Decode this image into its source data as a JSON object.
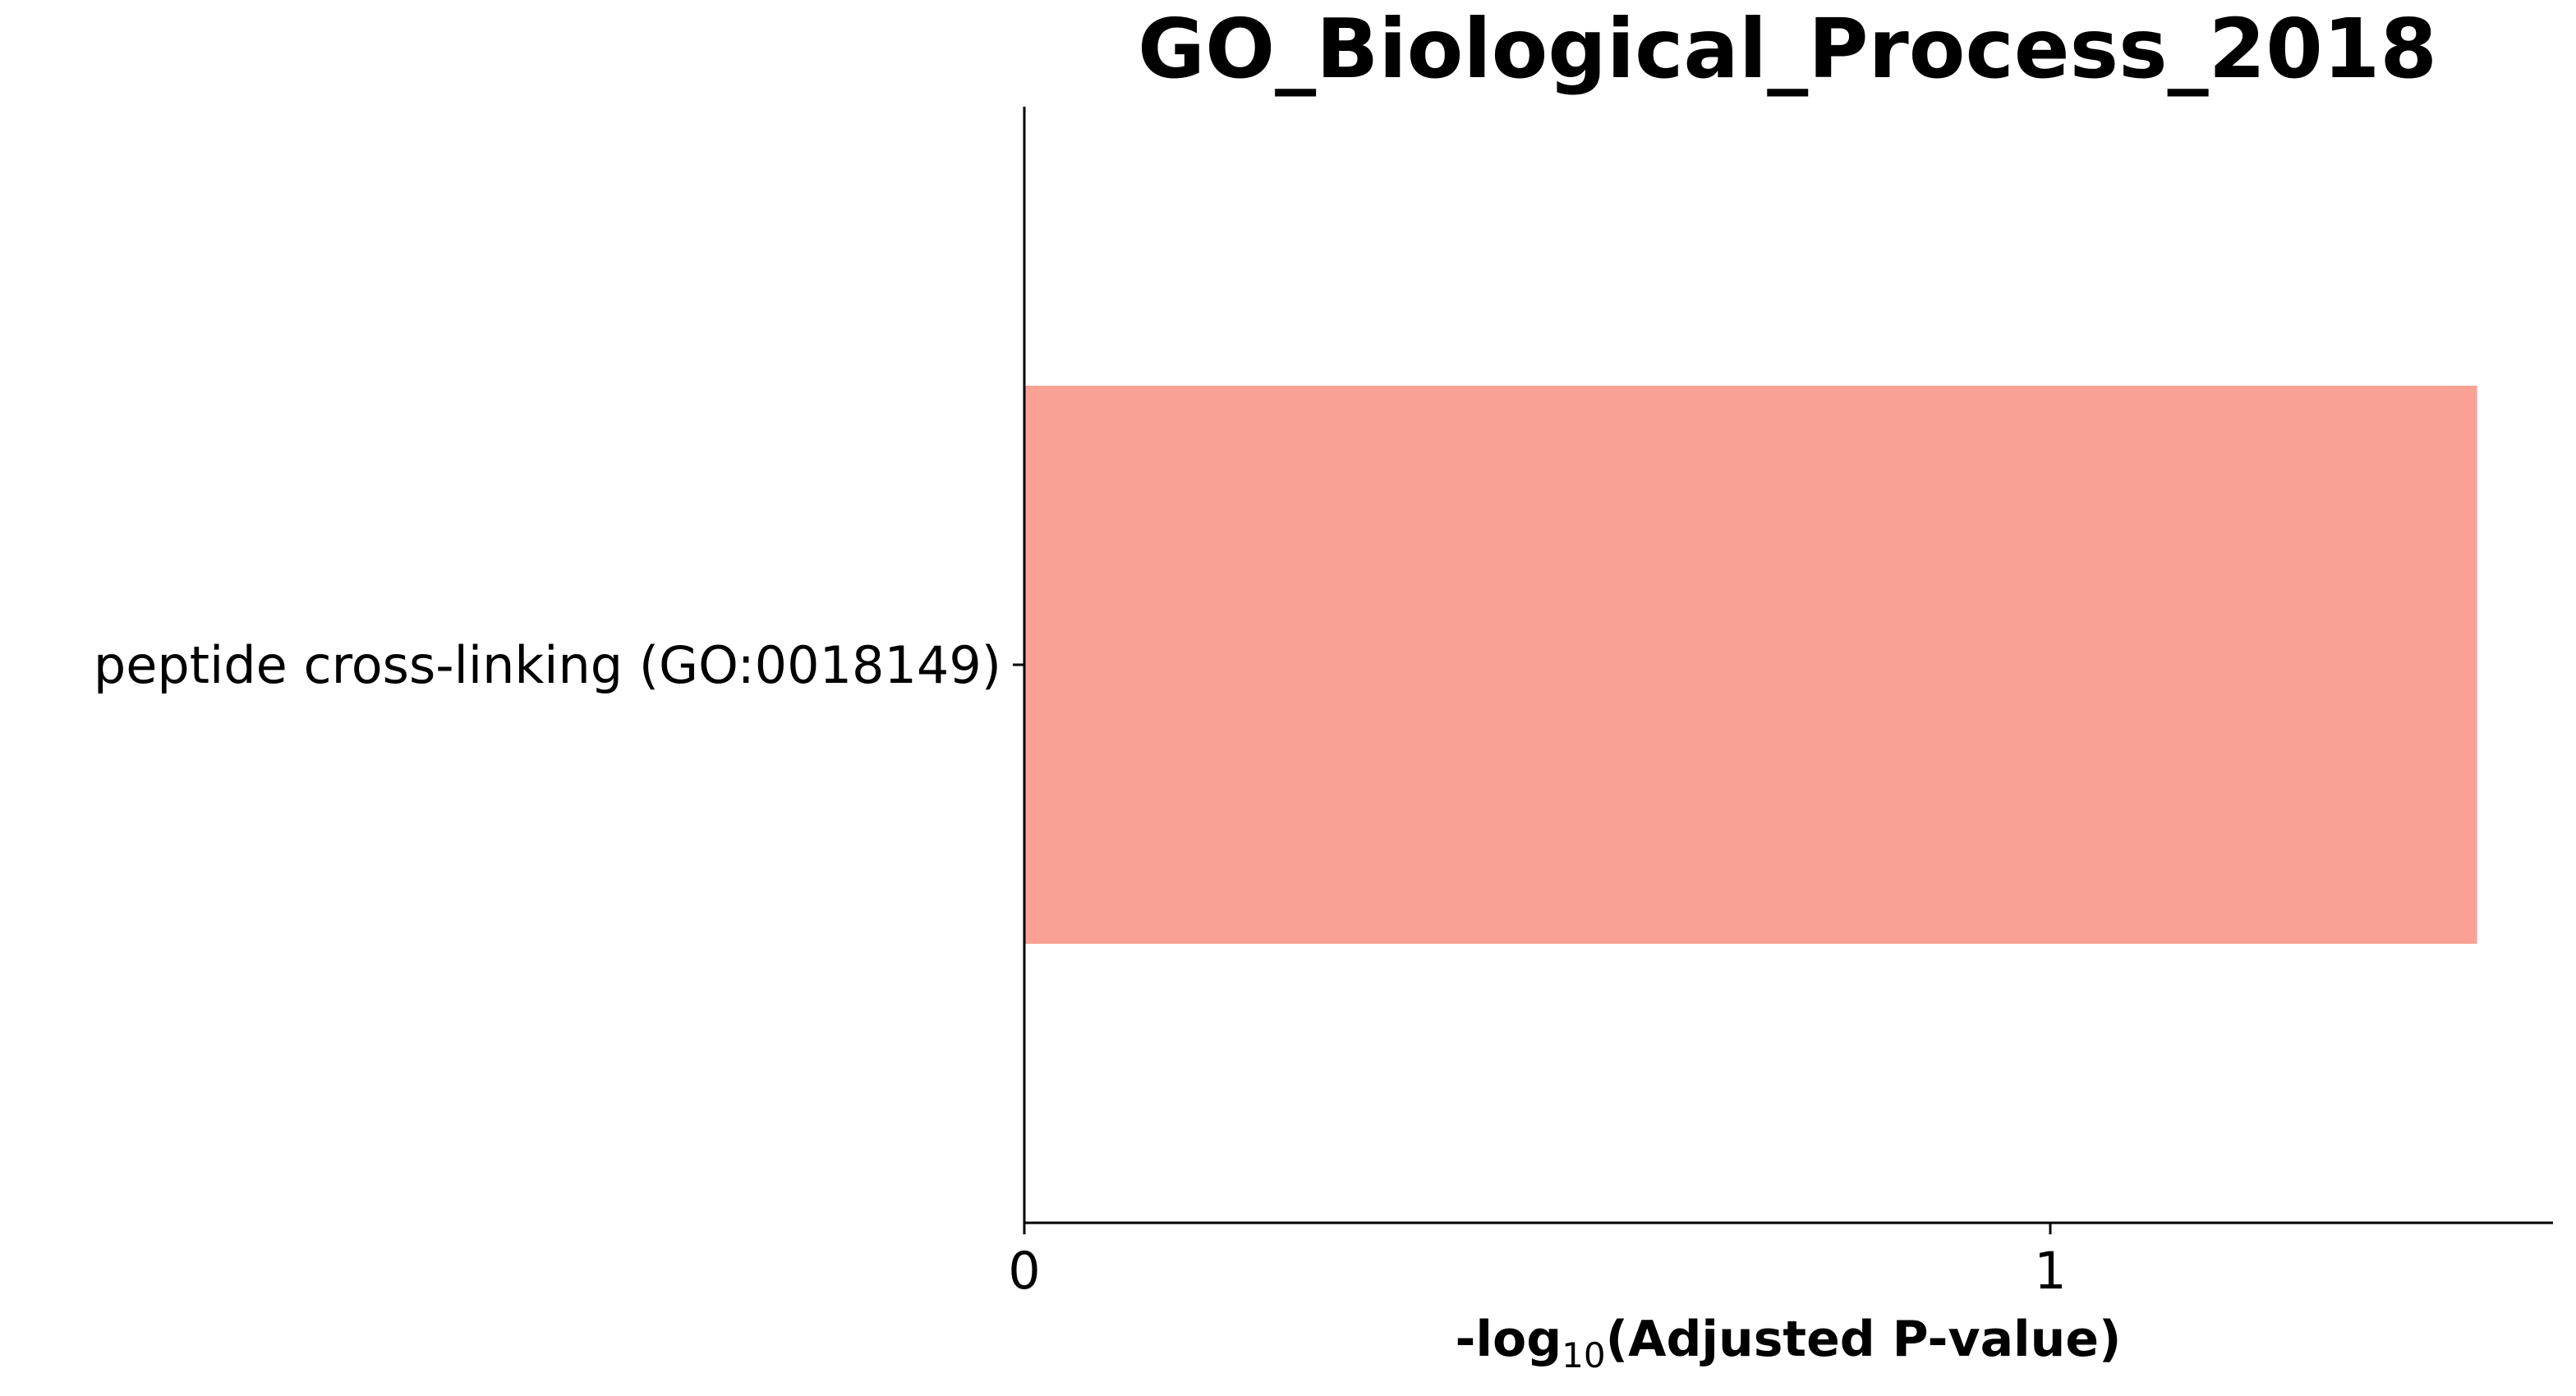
{
  "chart_data": {
    "type": "bar",
    "orientation": "horizontal",
    "title": "GO_Biological_Process_2018",
    "xlabel": {
      "prefix": "-log",
      "subscript": "10",
      "suffix": "(Adjusted P-value)"
    },
    "ylabel": "",
    "categories": [
      "peptide cross-linking (GO:0018149)"
    ],
    "values": [
      1.416
    ],
    "xlim": [
      0,
      1.49
    ],
    "xticks": [
      0,
      1
    ],
    "bar_color": "#f9a195",
    "grid": false,
    "legend": "none"
  }
}
